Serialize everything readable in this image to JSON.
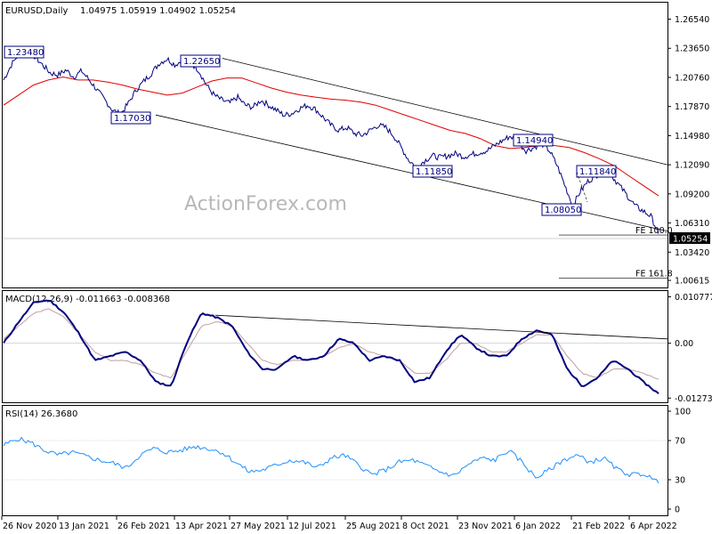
{
  "window": {
    "title": "EURUSD,Daily",
    "ohlc": "1.04975 1.05919 1.04902 1.05254",
    "watermark": "ActionForex.com"
  },
  "chart_data": [
    {
      "type": "line",
      "name": "price",
      "title": "EURUSD,Daily",
      "ohlc_text": "1.04975 1.05919 1.04902 1.05254",
      "ylim": [
        1.0,
        1.28
      ],
      "ytick_labels": [
        "1.26540",
        "1.23650",
        "1.20760",
        "1.17870",
        "1.14980",
        "1.12090",
        "1.09200",
        "1.06310",
        "1.03420",
        "1.00615"
      ],
      "ytick_values": [
        1.2654,
        1.2365,
        1.2076,
        1.1787,
        1.1498,
        1.1209,
        1.092,
        1.0631,
        1.0342,
        1.00615
      ],
      "last_price": "1.05254",
      "grid": false,
      "price_path": [
        1.205,
        1.22,
        1.232,
        1.236,
        1.228,
        1.22,
        1.212,
        1.21,
        1.215,
        1.208,
        1.214,
        1.205,
        1.195,
        1.185,
        1.175,
        1.171,
        1.182,
        1.195,
        1.204,
        1.212,
        1.222,
        1.226,
        1.22,
        1.225,
        1.222,
        1.215,
        1.2,
        1.19,
        1.185,
        1.182,
        1.188,
        1.18,
        1.178,
        1.185,
        1.18,
        1.175,
        1.17,
        1.172,
        1.177,
        1.18,
        1.176,
        1.168,
        1.16,
        1.155,
        1.158,
        1.152,
        1.15,
        1.155,
        1.16,
        1.158,
        1.15,
        1.138,
        1.125,
        1.1185,
        1.125,
        1.13,
        1.128,
        1.13,
        1.132,
        1.129,
        1.131,
        1.133,
        1.135,
        1.14,
        1.145,
        1.1494,
        1.143,
        1.135,
        1.138,
        1.142,
        1.135,
        1.12,
        1.1,
        1.0805,
        1.095,
        1.105,
        1.11,
        1.1184,
        1.11,
        1.1,
        1.09,
        1.08,
        1.075,
        1.07,
        1.0525
      ],
      "ma_path": [
        1.18,
        1.19,
        1.2,
        1.205,
        1.208,
        1.205,
        1.205,
        1.203,
        1.2,
        1.196,
        1.193,
        1.19,
        1.192,
        1.198,
        1.204,
        1.207,
        1.207,
        1.202,
        1.197,
        1.193,
        1.19,
        1.188,
        1.186,
        1.185,
        1.183,
        1.18,
        1.175,
        1.17,
        1.165,
        1.16,
        1.155,
        1.152,
        1.147,
        1.14,
        1.137,
        1.138,
        1.14,
        1.14,
        1.138,
        1.133,
        1.127,
        1.12,
        1.11,
        1.1,
        1.09
      ],
      "annotations": [
        {
          "text": "1.23480",
          "value": 1.2348
        },
        {
          "text": "1.22650",
          "value": 1.2265
        },
        {
          "text": "1.17030",
          "value": 1.1703
        },
        {
          "text": "1.14940",
          "value": 1.1494
        },
        {
          "text": "1.11850",
          "value": 1.1185
        },
        {
          "text": "1.11840",
          "value": 1.1184
        },
        {
          "text": "1.08050",
          "value": 1.0805
        }
      ],
      "fib_labels": [
        "FE 100.0",
        "FE 161.8"
      ],
      "fib_values": [
        1.0512,
        1.0082
      ],
      "channel_upper": [
        1.2265,
        1.1209
      ],
      "channel_lower": [
        1.1703,
        1.055
      ]
    },
    {
      "type": "line",
      "name": "macd",
      "title": "MACD(12,26,9) -0.011663 -0.008368",
      "ylim": [
        -0.0135,
        0.0115
      ],
      "ytick_labels": [
        "0.010777",
        "0.00",
        "-0.012732"
      ],
      "ytick_values": [
        0.010777,
        0.0,
        -0.012732
      ],
      "macd_path": [
        0.0,
        0.005,
        0.0095,
        0.01,
        0.007,
        0.002,
        -0.004,
        -0.003,
        -0.002,
        -0.004,
        -0.009,
        -0.01,
        0.0,
        0.007,
        0.006,
        0.004,
        -0.002,
        -0.006,
        -0.006,
        -0.003,
        -0.004,
        -0.003,
        0.001,
        0.0,
        -0.004,
        -0.003,
        -0.004,
        -0.009,
        -0.008,
        -0.002,
        0.002,
        -0.001,
        -0.003,
        -0.003,
        0.001,
        0.003,
        0.002,
        -0.006,
        -0.01,
        -0.008,
        -0.004,
        -0.006,
        -0.009,
        -0.0117
      ],
      "signal_path": [
        0.001,
        0.004,
        0.007,
        0.008,
        0.006,
        0.002,
        -0.002,
        -0.004,
        -0.004,
        -0.005,
        -0.007,
        -0.008,
        -0.002,
        0.004,
        0.005,
        0.004,
        0.0,
        -0.004,
        -0.005,
        -0.004,
        -0.004,
        -0.003,
        -0.001,
        0.0,
        -0.002,
        -0.003,
        -0.004,
        -0.007,
        -0.007,
        -0.004,
        0.0,
        0.0,
        -0.002,
        -0.002,
        0.0,
        0.002,
        0.002,
        -0.003,
        -0.007,
        -0.008,
        -0.006,
        -0.006,
        -0.007,
        -0.0084
      ],
      "trend_line": [
        0.0065,
        0.001
      ]
    },
    {
      "type": "line",
      "name": "rsi",
      "title": "RSI(14) 26.3680",
      "ylim": [
        0,
        100
      ],
      "ytick_labels": [
        "100",
        "70",
        "30",
        "0"
      ],
      "ytick_values": [
        100,
        70,
        30,
        0
      ],
      "levels": [
        70,
        30
      ],
      "rsi_path": [
        65,
        72,
        68,
        60,
        55,
        58,
        54,
        50,
        47,
        42,
        55,
        62,
        58,
        60,
        64,
        62,
        58,
        48,
        38,
        40,
        45,
        50,
        48,
        42,
        52,
        55,
        45,
        35,
        40,
        48,
        50,
        44,
        38,
        34,
        45,
        52,
        50,
        60,
        48,
        32,
        40,
        50,
        55,
        48,
        52,
        40,
        35,
        36,
        26.4
      ],
      "xtick_labels": [
        "26 Nov 2020",
        "13 Jan 2021",
        "26 Feb 2021",
        "13 Apr 2021",
        "27 May 2021",
        "12 Jul 2021",
        "25 Aug 2021",
        "8 Oct 2021",
        "23 Nov 2021",
        "6 Jan 2022",
        "21 Feb 2022",
        "6 Apr 2022"
      ]
    }
  ],
  "colors": {
    "price": "#000080",
    "ma": "#e00000",
    "channel": "#000000",
    "macd": "#000080",
    "signal": "#c0a0a0",
    "rsi": "#1e90ff",
    "level_line": "#c0c0c0",
    "box_border": "#000080"
  }
}
